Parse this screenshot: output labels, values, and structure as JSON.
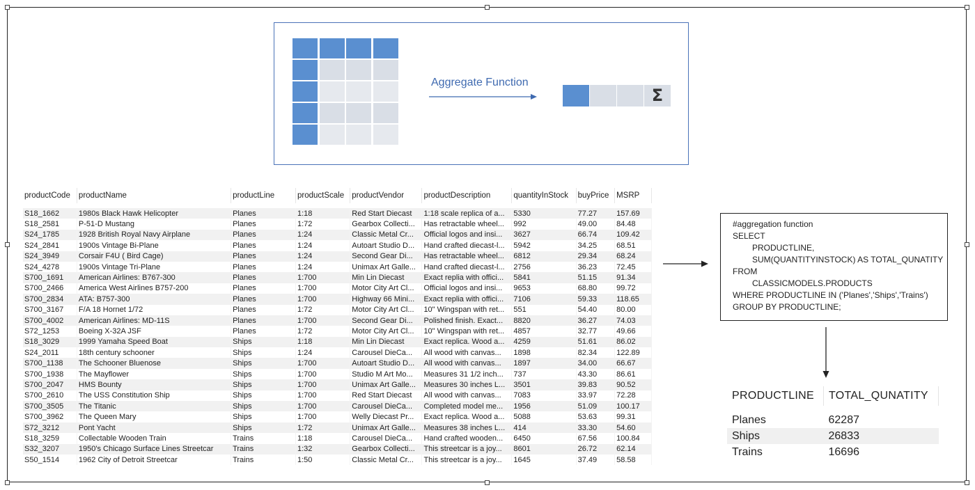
{
  "diagram": {
    "aggregate_label": "Aggregate Function",
    "sigma_symbol": "Σ",
    "colors": {
      "blue": "#5a8fd0",
      "light_gray": "#d9dee6",
      "lighter_gray": "#e6e9ee",
      "arrow": "#3f6ab0"
    }
  },
  "products_table": {
    "columns": [
      "productCode",
      "productName",
      "productLine",
      "productScale",
      "productVendor",
      "productDescription",
      "quantityInStock",
      "buyPrice",
      "MSRP"
    ],
    "rows": [
      [
        "S18_1662",
        "1980s Black Hawk Helicopter",
        "Planes",
        "1:18",
        "Red Start Diecast",
        "1:18 scale replica of a...",
        "5330",
        "77.27",
        "157.69"
      ],
      [
        "S18_2581",
        "P-51-D Mustang",
        "Planes",
        "1:72",
        "Gearbox Collecti...",
        "Has retractable wheel...",
        "992",
        "49.00",
        "84.48"
      ],
      [
        "S24_1785",
        "1928 British Royal Navy Airplane",
        "Planes",
        "1:24",
        "Classic Metal Cr...",
        "Official logos and insi...",
        "3627",
        "66.74",
        "109.42"
      ],
      [
        "S24_2841",
        "1900s Vintage Bi-Plane",
        "Planes",
        "1:24",
        "Autoart Studio D...",
        "Hand crafted diecast-l...",
        "5942",
        "34.25",
        "68.51"
      ],
      [
        "S24_3949",
        "Corsair F4U ( Bird Cage)",
        "Planes",
        "1:24",
        "Second Gear Di...",
        "Has retractable wheel...",
        "6812",
        "29.34",
        "68.24"
      ],
      [
        "S24_4278",
        "1900s Vintage Tri-Plane",
        "Planes",
        "1:24",
        "Unimax Art Galle...",
        "Hand crafted diecast-l...",
        "2756",
        "36.23",
        "72.45"
      ],
      [
        "S700_1691",
        "American Airlines: B767-300",
        "Planes",
        "1:700",
        "Min Lin Diecast",
        "Exact replia with offici...",
        "5841",
        "51.15",
        "91.34"
      ],
      [
        "S700_2466",
        "America West Airlines B757-200",
        "Planes",
        "1:700",
        "Motor City Art Cl...",
        "Official logos and insi...",
        "9653",
        "68.80",
        "99.72"
      ],
      [
        "S700_2834",
        "ATA: B757-300",
        "Planes",
        "1:700",
        "Highway 66 Mini...",
        "Exact replia with offici...",
        "7106",
        "59.33",
        "118.65"
      ],
      [
        "S700_3167",
        "F/A 18 Hornet 1/72",
        "Planes",
        "1:72",
        "Motor City Art Cl...",
        "10\" Wingspan with ret...",
        "551",
        "54.40",
        "80.00"
      ],
      [
        "S700_4002",
        "American Airlines: MD-11S",
        "Planes",
        "1:700",
        "Second Gear Di...",
        "Polished finish. Exact...",
        "8820",
        "36.27",
        "74.03"
      ],
      [
        "S72_1253",
        "Boeing X-32A JSF",
        "Planes",
        "1:72",
        "Motor City Art Cl...",
        "10\" Wingspan with ret...",
        "4857",
        "32.77",
        "49.66"
      ],
      [
        "S18_3029",
        "1999 Yamaha Speed Boat",
        "Ships",
        "1:18",
        "Min Lin Diecast",
        "Exact replica. Wood a...",
        "4259",
        "51.61",
        "86.02"
      ],
      [
        "S24_2011",
        "18th century schooner",
        "Ships",
        "1:24",
        "Carousel DieCa...",
        "All wood with canvas...",
        "1898",
        "82.34",
        "122.89"
      ],
      [
        "S700_1138",
        "The Schooner Bluenose",
        "Ships",
        "1:700",
        "Autoart Studio D...",
        "All wood with canvas...",
        "1897",
        "34.00",
        "66.67"
      ],
      [
        "S700_1938",
        "The Mayflower",
        "Ships",
        "1:700",
        "Studio M Art Mo...",
        "Measures 31 1/2 inch...",
        "737",
        "43.30",
        "86.61"
      ],
      [
        "S700_2047",
        "HMS Bounty",
        "Ships",
        "1:700",
        "Unimax Art Galle...",
        "Measures 30 inches L...",
        "3501",
        "39.83",
        "90.52"
      ],
      [
        "S700_2610",
        "The USS Constitution Ship",
        "Ships",
        "1:700",
        "Red Start Diecast",
        "All wood with canvas...",
        "7083",
        "33.97",
        "72.28"
      ],
      [
        "S700_3505",
        "The Titanic",
        "Ships",
        "1:700",
        "Carousel DieCa...",
        "Completed model me...",
        "1956",
        "51.09",
        "100.17"
      ],
      [
        "S700_3962",
        "The Queen Mary",
        "Ships",
        "1:700",
        "Welly Diecast Pr...",
        "Exact replica. Wood a...",
        "5088",
        "53.63",
        "99.31"
      ],
      [
        "S72_3212",
        "Pont Yacht",
        "Ships",
        "1:72",
        "Unimax Art Galle...",
        "Measures 38 inches L...",
        "414",
        "33.30",
        "54.60"
      ],
      [
        "S18_3259",
        "Collectable Wooden Train",
        "Trains",
        "1:18",
        "Carousel DieCa...",
        "Hand crafted wooden...",
        "6450",
        "67.56",
        "100.84"
      ],
      [
        "S32_3207",
        "1950's Chicago Surface Lines Streetcar",
        "Trains",
        "1:32",
        "Gearbox Collecti...",
        "This streetcar is a joy...",
        "8601",
        "26.72",
        "62.14"
      ],
      [
        "S50_1514",
        "1962 City of Detroit Streetcar",
        "Trains",
        "1:50",
        "Classic Metal Cr...",
        "This streetcar is a joy...",
        "1645",
        "37.49",
        "58.58"
      ]
    ]
  },
  "sql": {
    "lines": [
      {
        "text": "#aggregation function",
        "indent": false
      },
      {
        "text": "SELECT",
        "indent": false
      },
      {
        "text": "PRODUCTLINE,",
        "indent": true
      },
      {
        "text": "SUM(QUANTITYINSTOCK) AS TOTAL_QUNATITY",
        "indent": true
      },
      {
        "text": "FROM",
        "indent": false
      },
      {
        "text": "CLASSICMODELS.PRODUCTS",
        "indent": true
      },
      {
        "text": "WHERE PRODUCTLINE IN ('Planes','Ships','Trains')",
        "indent": false
      },
      {
        "text": "GROUP BY PRODUCTLINE;",
        "indent": false
      }
    ]
  },
  "result_table": {
    "columns": [
      "PRODUCTLINE",
      "TOTAL_QUNATITY"
    ],
    "rows": [
      [
        "Planes",
        "62287"
      ],
      [
        "Ships",
        "26833"
      ],
      [
        "Trains",
        "16696"
      ]
    ]
  }
}
